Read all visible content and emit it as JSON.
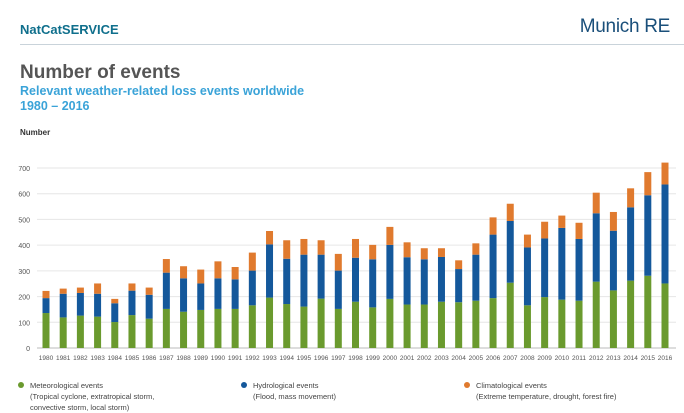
{
  "header": {
    "brand": "NatCatSERVICE",
    "logo": "Munich RE"
  },
  "chart_data": {
    "type": "bar",
    "stacked": true,
    "title": "Number of events",
    "subtitle": "Relevant weather-related loss events worldwide 1980 – 2016",
    "ylabel": "Number",
    "xlabel": "",
    "ylim": [
      0,
      700
    ],
    "yticks": [
      0,
      100,
      200,
      300,
      400,
      500,
      600,
      700
    ],
    "grid": true,
    "legend_placement": "bottom",
    "categories": [
      "1980",
      "1981",
      "1982",
      "1983",
      "1984",
      "1985",
      "1986",
      "1987",
      "1988",
      "1989",
      "1990",
      "1991",
      "1992",
      "1993",
      "1994",
      "1995",
      "1996",
      "1997",
      "1998",
      "1999",
      "2000",
      "2001",
      "2002",
      "2003",
      "2004",
      "2005",
      "2006",
      "2007",
      "2008",
      "2009",
      "2010",
      "2011",
      "2012",
      "2013",
      "2014",
      "2015",
      "2016"
    ],
    "series": [
      {
        "name": "Meteorological events",
        "note": "(Tropical cyclone, extratropical storm, convective storm, local storm)",
        "color": "#6a9a2e",
        "values": [
          136,
          119,
          126,
          122,
          101,
          128,
          114,
          152,
          141,
          148,
          152,
          152,
          166,
          196,
          171,
          161,
          192,
          152,
          180,
          158,
          191,
          169,
          169,
          180,
          178,
          184,
          194,
          254,
          166,
          198,
          188,
          184,
          258,
          224,
          262,
          281,
          251
        ]
      },
      {
        "name": "Hydrological events",
        "note": "(Flood, mass movement)",
        "color": "#14589b",
        "values": [
          58,
          92,
          88,
          89,
          73,
          95,
          93,
          141,
          130,
          103,
          119,
          115,
          135,
          207,
          176,
          202,
          171,
          149,
          171,
          187,
          210,
          184,
          176,
          174,
          129,
          179,
          247,
          240,
          225,
          228,
          279,
          240,
          266,
          232,
          285,
          313,
          385
        ]
      },
      {
        "name": "Climatological events",
        "note": "(Extreme temperature, drought, forest fire)",
        "color": "#e07a2e",
        "values": [
          28,
          20,
          21,
          40,
          17,
          28,
          28,
          53,
          47,
          54,
          66,
          48,
          70,
          52,
          72,
          61,
          56,
          65,
          73,
          56,
          70,
          58,
          43,
          34,
          34,
          44,
          67,
          67,
          50,
          65,
          48,
          63,
          80,
          73,
          74,
          90,
          85
        ]
      }
    ]
  }
}
